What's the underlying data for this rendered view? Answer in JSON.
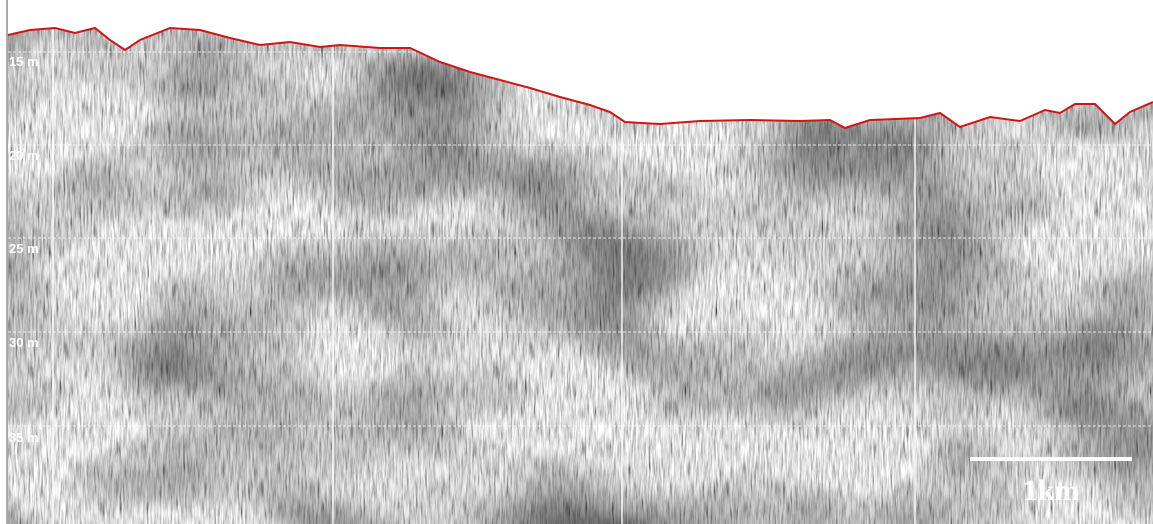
{
  "depth_labels": [
    "15 m",
    "20 m",
    "25 m",
    "30 m",
    "35 m"
  ],
  "scale_bar": {
    "label": "1km"
  }
}
